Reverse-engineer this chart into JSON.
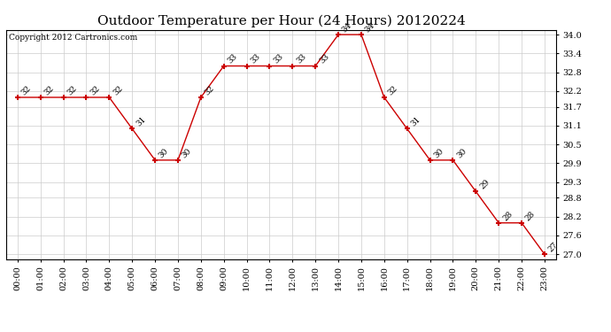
{
  "title": "Outdoor Temperature per Hour (24 Hours) 20120224",
  "copyright_text": "Copyright 2012 Cartronics.com",
  "hours": [
    "00:00",
    "01:00",
    "02:00",
    "03:00",
    "04:00",
    "05:00",
    "06:00",
    "07:00",
    "08:00",
    "09:00",
    "10:00",
    "11:00",
    "12:00",
    "13:00",
    "14:00",
    "15:00",
    "16:00",
    "17:00",
    "18:00",
    "19:00",
    "20:00",
    "21:00",
    "22:00",
    "23:00"
  ],
  "temperatures": [
    32,
    32,
    32,
    32,
    32,
    31,
    30,
    30,
    32,
    33,
    33,
    33,
    33,
    33,
    34,
    34,
    32,
    31,
    30,
    30,
    29,
    28,
    28,
    27
  ],
  "line_color": "#cc0000",
  "marker": "+",
  "marker_color": "#cc0000",
  "grid_color": "#cccccc",
  "bg_color": "#ffffff",
  "title_fontsize": 11,
  "annotation_fontsize": 6.5,
  "tick_fontsize": 7,
  "copyright_fontsize": 6.5,
  "yticks": [
    27.0,
    27.6,
    28.2,
    28.8,
    29.3,
    29.9,
    30.5,
    31.1,
    31.7,
    32.2,
    32.8,
    33.4,
    34.0
  ],
  "ylim_min": 26.85,
  "ylim_max": 34.15
}
